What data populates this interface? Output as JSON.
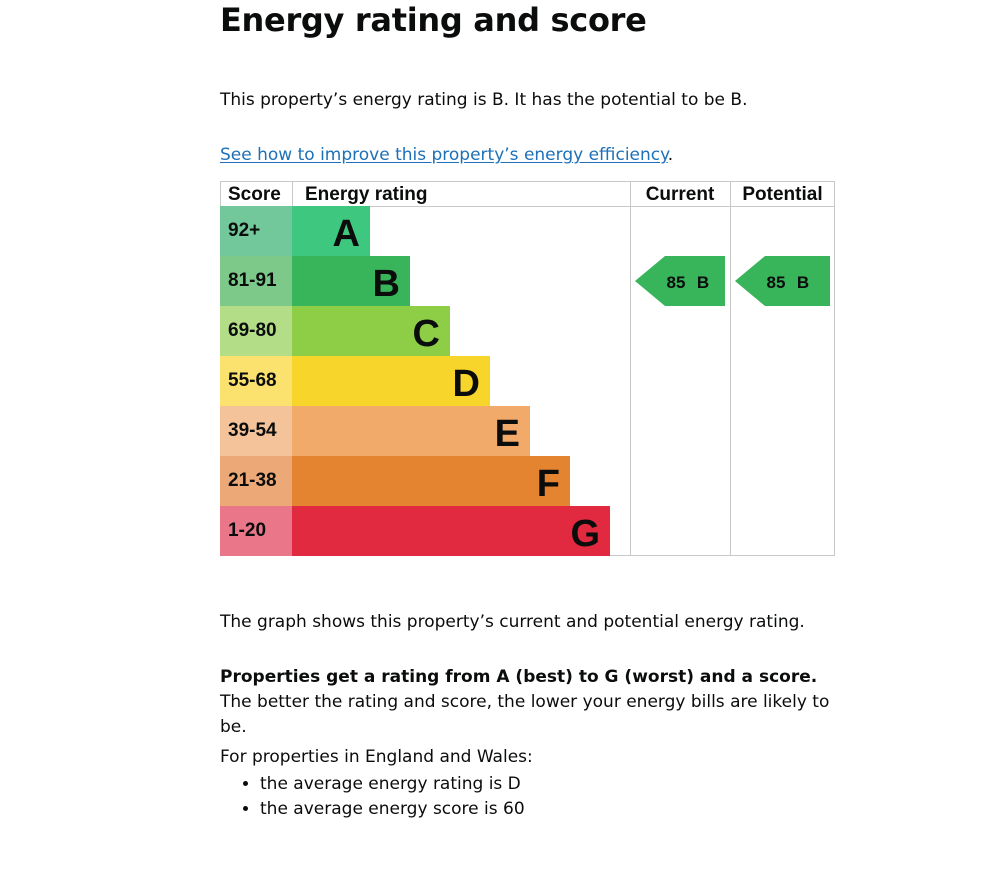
{
  "page": {
    "title": "Energy rating and score",
    "intro": "This property’s energy rating is B. It has the potential to be B.",
    "improve_link": "See how to improve this property’s energy efficiency",
    "improve_link_suffix": ".",
    "graph_note": "The graph shows this property’s current and potential energy rating.",
    "ratings_bold": "Properties get a rating from A (best) to G (worst) and a score.",
    "ratings_rest": " The better the rating and score, the lower your energy bills are likely to be.",
    "england_wales": "For properties in England and Wales:",
    "averages": [
      "the average energy rating is D",
      "the average energy score is 60"
    ]
  },
  "chart_data": {
    "type": "table",
    "headers": {
      "score": "Score",
      "rating": "Energy rating",
      "current": "Current",
      "potential": "Potential"
    },
    "bands": [
      {
        "score": "92+",
        "letter": "A",
        "color": "#3ec87f",
        "score_color": "#72c89a"
      },
      {
        "score": "81-91",
        "letter": "B",
        "color": "#38b45a",
        "score_color": "#7cc98a"
      },
      {
        "score": "69-80",
        "letter": "C",
        "color": "#8dce46",
        "score_color": "#b3de87"
      },
      {
        "score": "55-68",
        "letter": "D",
        "color": "#f8d52a",
        "score_color": "#fbe26e"
      },
      {
        "score": "39-54",
        "letter": "E",
        "color": "#f2aa6b",
        "score_color": "#f5c39a"
      },
      {
        "score": "21-38",
        "letter": "F",
        "color": "#e58430",
        "score_color": "#eda877"
      },
      {
        "score": "1-20",
        "letter": "G",
        "color": "#e12a40",
        "score_color": "#ea768a"
      }
    ],
    "current": {
      "score": "85",
      "letter": "B",
      "band_index": 1,
      "color": "#38b45a"
    },
    "potential": {
      "score": "85",
      "letter": "B",
      "band_index": 1,
      "color": "#38b45a"
    }
  }
}
